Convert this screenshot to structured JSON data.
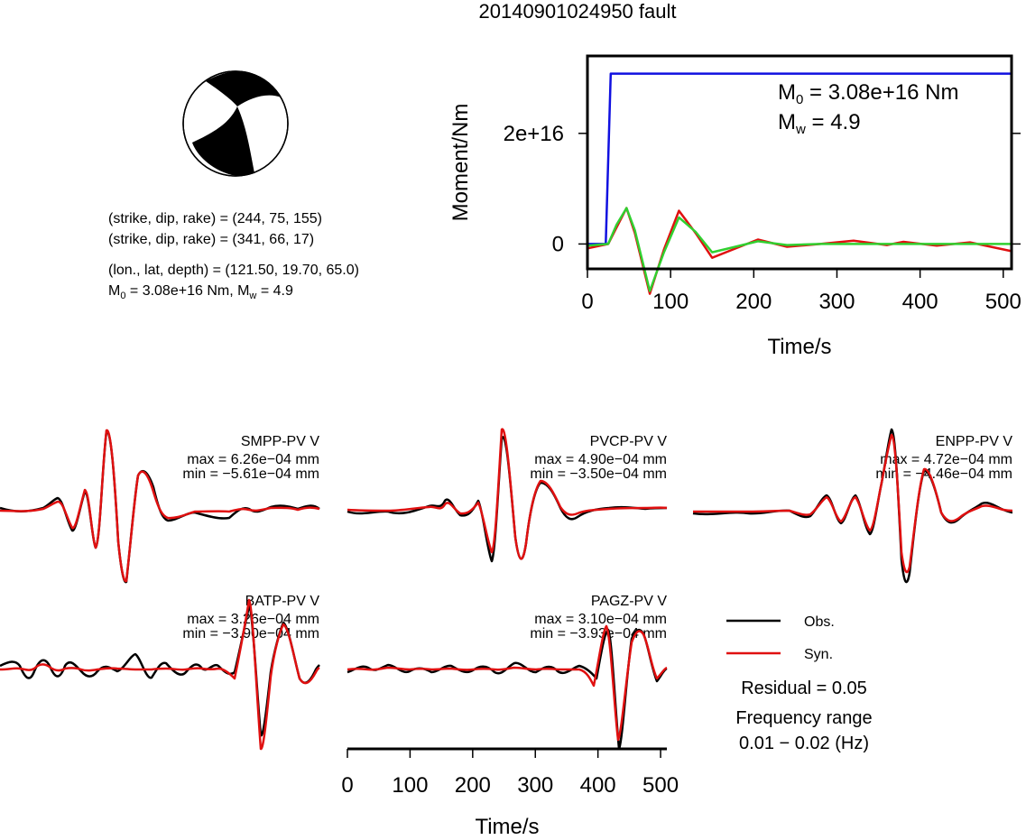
{
  "title": "20140901024950 fault",
  "mechanism": {
    "line1": "(strike, dip, rake) = (244, 75, 155)",
    "line2": "(strike, dip, rake) = (341, 66, 17)",
    "line3": "(lon., lat, depth) = (121.50, 19.70, 65.0)",
    "m0_prefix": "M",
    "m0_sub": "0",
    "m0_text": " = 3.08e+16 Nm, M",
    "mw_sub": "w",
    "mw_text": " = 4.9"
  },
  "moment_plot": {
    "ylabel": "Moment/Nm",
    "xlabel": "Time/s",
    "yticks": [
      "0",
      "2e+16"
    ],
    "xticks": [
      "0",
      "100",
      "200",
      "300",
      "400",
      "500"
    ],
    "m0_label": {
      "prefix": "M",
      "sub": "0",
      "text": " = 3.08e+16 Nm"
    },
    "mw_label": {
      "prefix": "M",
      "sub": "w",
      "text": " = 4.9"
    }
  },
  "waveform_xaxis": {
    "ticks": [
      "0",
      "100",
      "200",
      "300",
      "400",
      "500"
    ],
    "label": "Time/s"
  },
  "stations": [
    {
      "name": "SMPP-PV V",
      "max": "max = 6.26e−04 mm",
      "min": "min = −5.61e−04 mm"
    },
    {
      "name": "PVCP-PV V",
      "max": "max = 4.90e−04 mm",
      "min": "min = −3.50e−04 mm"
    },
    {
      "name": "ENPP-PV V",
      "max": "max = 4.72e−04 mm",
      "min": "min = −4.46e−04 mm"
    },
    {
      "name": "BATP-PV V",
      "max": "max = 3.26e−04 mm",
      "min": "min = −3.90e−04 mm"
    },
    {
      "name": "PAGZ-PV V",
      "max": "max = 3.10e−04 mm",
      "min": "min = −3.93e−04 mm"
    }
  ],
  "legend": {
    "obs": "Obs.",
    "syn": "Syn.",
    "residual": "Residual = 0.05",
    "freq_label": "Frequency range",
    "freq_value": "0.01 − 0.02 (Hz)"
  },
  "colors": {
    "obs": "#000000",
    "syn": "#e01010",
    "moment_cumulative": "#1010e0",
    "moment_rate_fit": "#30d030"
  },
  "chart_data": [
    {
      "type": "line",
      "xlabel": "Time/s",
      "ylabel": "Moment/Nm",
      "xlim": [
        0,
        510
      ],
      "ylim": [
        -4500000000000000.0,
        3.4e+16
      ],
      "series": [
        {
          "color": "#1010e0",
          "x": [
            0,
            22,
            28,
            510
          ],
          "y": [
            0,
            0,
            3.08e+16,
            3.08e+16
          ]
        },
        {
          "color": "#e01010",
          "x": [
            0,
            25,
            35,
            47,
            57,
            75,
            92,
            110,
            130,
            150,
            175,
            205,
            240,
            280,
            320,
            360,
            380,
            420,
            460,
            510
          ],
          "y": [
            -800000000000000.0,
            0,
            3000000000000000.0,
            6500000000000000.0,
            2000000000000000.0,
            -9000000000000000.0,
            -1000000000000000.0,
            6000000000000000.0,
            2000000000000000.0,
            -2500000000000000.0,
            -1000000000000000.0,
            800000000000000.0,
            -500000000000000.0,
            0,
            600000000000000.0,
            -200000000000000.0,
            400000000000000.0,
            -300000000000000.0,
            300000000000000.0,
            -1300000000000000.0
          ]
        },
        {
          "color": "#30d030",
          "x": [
            0,
            25,
            35,
            47,
            57,
            75,
            92,
            110,
            130,
            150,
            175,
            205,
            240,
            280,
            320,
            510
          ],
          "y": [
            -300000000000000.0,
            0,
            3500000000000000.0,
            6500000000000000.0,
            2500000000000000.0,
            -8500000000000000.0,
            -1500000000000000.0,
            4800000000000000.0,
            2200000000000000.0,
            -1500000000000000.0,
            -600000000000000.0,
            500000000000000.0,
            -200000000000000.0,
            0,
            0,
            0
          ]
        }
      ]
    }
  ]
}
